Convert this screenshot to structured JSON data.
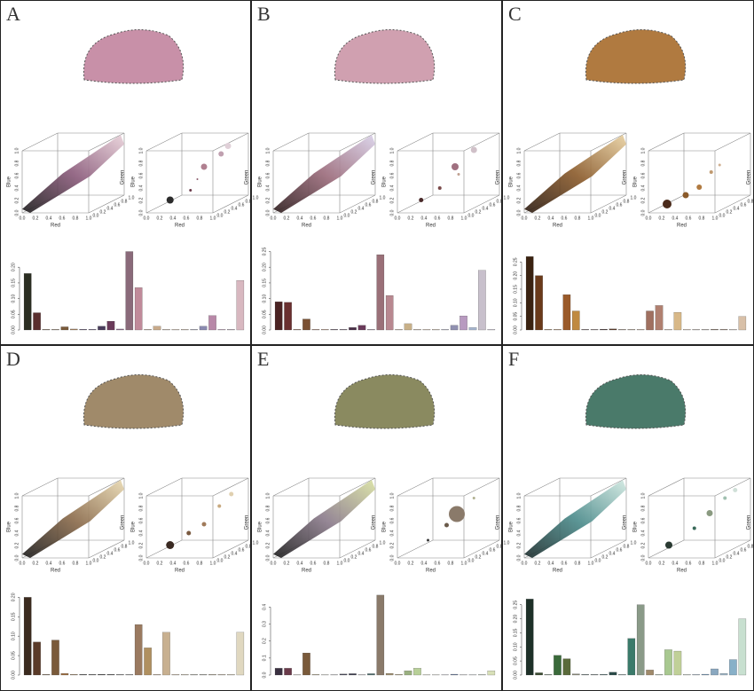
{
  "figure": {
    "scatter_axes": {
      "x_label": "Red",
      "y_label": "Blue",
      "z_label": "Green",
      "ticks": [
        {
          "value": 0,
          "label": "0.0"
        },
        0.2,
        0.4,
        0.6,
        0.8,
        {
          "value": 1,
          "label": "1.0"
        }
      ]
    },
    "panels": [
      {
        "label": "A",
        "type": "bar",
        "cloud_colors": [
          "#1a1a1a",
          "#8a5a7a",
          "#e8d0d8"
        ],
        "bubbles": [
          {
            "red": 0.25,
            "green": 0.2,
            "blue": 0.15,
            "size": 4,
            "color": "#2b2b2b"
          },
          {
            "red": 0.45,
            "green": 0.4,
            "blue": 0.25,
            "size": 1.5,
            "color": "#6a3a4a"
          },
          {
            "red": 0.5,
            "green": 0.5,
            "blue": 0.4,
            "size": 1,
            "color": "#8a5a6a"
          },
          {
            "red": 0.6,
            "green": 0.5,
            "blue": 0.6,
            "size": 3.5,
            "color": "#b08090"
          },
          {
            "red": 0.75,
            "green": 0.7,
            "blue": 0.75,
            "size": 3,
            "color": "#c0a0b0"
          },
          {
            "red": 0.8,
            "green": 0.8,
            "blue": 0.85,
            "size": 3.5,
            "color": "#e0d0d8"
          }
        ],
        "ylim": [
          0,
          0.26
        ],
        "yticks": [
          {
            "value": 0,
            "label": "0.00"
          },
          {
            "value": 0.05,
            "label": "0.05"
          },
          {
            "value": 0.1,
            "label": "0.10"
          },
          {
            "value": 0.15,
            "label": "0.15"
          },
          {
            "value": 0.2,
            "label": "0.20"
          }
        ],
        "values": [
          0.18,
          0.055,
          0.002,
          0.002,
          0.01,
          0.003,
          0.002,
          0.002,
          0.012,
          0.028,
          0.003,
          0.25,
          0.135,
          0.002,
          0.012,
          0.002,
          0.002,
          0.002,
          0.002,
          0.012,
          0.046,
          0.002,
          0.002,
          0.158
        ],
        "colors": [
          "#2b2e22",
          "#5a2e2e",
          "#7a6a5a",
          "#8a7a6a",
          "#7a5a3a",
          "#a08060",
          "#4a3a5a",
          "#5a4a6a",
          "#4a3d5c",
          "#6a3a5a",
          "#8a6a8a",
          "#8a6a7a",
          "#c08a9a",
          "#b0a090",
          "#c8aa8a",
          "#c0b0a0",
          "#d0c0b0",
          "#c0b0a0",
          "#a0a0b0",
          "#8a8ab0",
          "#b888a8",
          "#c0a0b8",
          "#b0a0b0",
          "#d8b8c0"
        ]
      },
      {
        "label": "B",
        "type": "bar",
        "cloud_colors": [
          "#2a1a1a",
          "#9a6a7a",
          "#d8d0e8"
        ],
        "bubbles": [
          {
            "red": 0.25,
            "green": 0.2,
            "blue": 0.15,
            "size": 2.5,
            "color": "#4a2a2a"
          },
          {
            "red": 0.45,
            "green": 0.35,
            "blue": 0.3,
            "size": 2,
            "color": "#7a4a4a"
          },
          {
            "red": 0.6,
            "green": 0.6,
            "blue": 0.45,
            "size": 1.5,
            "color": "#c0a090"
          },
          {
            "red": 0.6,
            "green": 0.5,
            "blue": 0.6,
            "size": 4,
            "color": "#a07080"
          },
          {
            "red": 0.75,
            "green": 0.75,
            "blue": 0.8,
            "size": 3.5,
            "color": "#d0c0c8"
          }
        ],
        "ylim": [
          0,
          0.26
        ],
        "yticks": [
          {
            "value": 0,
            "label": "0.00"
          },
          {
            "value": 0.05,
            "label": "0.05"
          },
          {
            "value": 0.1,
            "label": "0.10"
          },
          {
            "value": 0.15,
            "label": "0.15"
          },
          {
            "value": 0.2,
            "label": "0.20"
          },
          {
            "value": 0.25,
            "label": "0.25"
          }
        ],
        "values": [
          0.09,
          0.088,
          0.002,
          0.035,
          0.002,
          0.002,
          0.002,
          0.002,
          0.008,
          0.015,
          0.002,
          0.24,
          0.11,
          0.002,
          0.02,
          0.002,
          0.002,
          0.002,
          0.002,
          0.015,
          0.045,
          0.008,
          0.19,
          0.002
        ],
        "colors": [
          "#4a2222",
          "#6a3030",
          "#8a6a5a",
          "#7a5032",
          "#a08070",
          "#b09080",
          "#5a4a5a",
          "#6a5a6a",
          "#4a3048",
          "#6a3a5a",
          "#9a8a9a",
          "#9a7078",
          "#b88890",
          "#c0b0a0",
          "#c8b088",
          "#c0b0a0",
          "#d0c0b0",
          "#c8b8a8",
          "#b0b0c0",
          "#9090b0",
          "#b89ac0",
          "#a8b8d0",
          "#c8c0cc",
          "#d0c8d8"
        ]
      },
      {
        "label": "C",
        "type": "bar",
        "cloud_colors": [
          "#2a1a10",
          "#8a5a2a",
          "#e8d0a0"
        ],
        "bubbles": [
          {
            "red": 0.2,
            "green": 0.15,
            "blue": 0.1,
            "size": 5,
            "color": "#4a2a1a"
          },
          {
            "red": 0.4,
            "green": 0.3,
            "blue": 0.2,
            "size": 3.5,
            "color": "#8a5a2a"
          },
          {
            "red": 0.55,
            "green": 0.4,
            "blue": 0.3,
            "size": 3,
            "color": "#b07a40"
          },
          {
            "red": 0.65,
            "green": 0.55,
            "blue": 0.5,
            "size": 2,
            "color": "#c09a70"
          },
          {
            "red": 0.75,
            "green": 0.6,
            "blue": 0.6,
            "size": 1.5,
            "color": "#d0b090"
          }
        ],
        "ylim": [
          0,
          0.3
        ],
        "yticks": [
          {
            "value": 0,
            "label": "0.00"
          },
          {
            "value": 0.05,
            "label": "0.05"
          },
          {
            "value": 0.1,
            "label": "0.10"
          },
          {
            "value": 0.15,
            "label": "0.15"
          },
          {
            "value": 0.2,
            "label": "0.20"
          },
          {
            "value": 0.25,
            "label": "0.25"
          }
        ],
        "values": [
          0.27,
          0.2,
          0.002,
          0.002,
          0.13,
          0.07,
          0.002,
          0.002,
          0.003,
          0.004,
          0.002,
          0.002,
          0.002,
          0.07,
          0.09,
          0.002,
          0.065,
          0.002,
          0.002,
          0.002,
          0.003,
          0.003,
          0.002,
          0.05
        ],
        "colors": [
          "#3a2210",
          "#6a3a1a",
          "#8a6a4a",
          "#9a7a5a",
          "#9a5a2a",
          "#c08a40",
          "#5a4a4a",
          "#6a5a5a",
          "#4a3a3a",
          "#5a3a2a",
          "#8a7a6a",
          "#9a8a7a",
          "#b09a8a",
          "#a07060",
          "#b08070",
          "#c0b0a0",
          "#d8b888",
          "#c8b8a8",
          "#b0a8a0",
          "#a09890",
          "#8a7a70",
          "#9a8a80",
          "#c0b8b0",
          "#d8c0a8"
        ]
      },
      {
        "label": "D",
        "type": "bar",
        "cloud_colors": [
          "#1a1a1a",
          "#8a6a4a",
          "#e8d8b0"
        ],
        "bubbles": [
          {
            "red": 0.25,
            "green": 0.2,
            "blue": 0.15,
            "size": 4.5,
            "color": "#3a2a22"
          },
          {
            "red": 0.45,
            "green": 0.35,
            "blue": 0.3,
            "size": 2.5,
            "color": "#7a5a40"
          },
          {
            "red": 0.6,
            "green": 0.5,
            "blue": 0.4,
            "size": 2.5,
            "color": "#a07a5a"
          },
          {
            "red": 0.75,
            "green": 0.65,
            "blue": 0.65,
            "size": 2,
            "color": "#c8aa80"
          },
          {
            "red": 0.85,
            "green": 0.8,
            "blue": 0.8,
            "size": 2.5,
            "color": "#e0d0b0"
          }
        ],
        "ylim": [
          0,
          0.21
        ],
        "yticks": [
          {
            "value": 0,
            "label": "0.00"
          },
          {
            "value": 0.05,
            "label": "0.05"
          },
          {
            "value": 0.1,
            "label": "0.10"
          },
          {
            "value": 0.15,
            "label": "0.15"
          },
          {
            "value": 0.2,
            "label": "0.20"
          }
        ],
        "values": [
          0.2,
          0.085,
          0.002,
          0.09,
          0.004,
          0.002,
          0.002,
          0.002,
          0.002,
          0.002,
          0.002,
          0.002,
          0.13,
          0.07,
          0.002,
          0.11,
          0.002,
          0.002,
          0.002,
          0.002,
          0.002,
          0.002,
          0.002,
          0.11
        ],
        "colors": [
          "#3a2a1e",
          "#5a3a28",
          "#8a7a6a",
          "#7a5a3a",
          "#9a6a3a",
          "#a08a70",
          "#5a5a5a",
          "#6a6a6a",
          "#4a4a4a",
          "#5a5a5a",
          "#8a8a8a",
          "#9a9a9a",
          "#9a7a60",
          "#b09060",
          "#c0b0a0",
          "#c8b090",
          "#d0c0b0",
          "#c8c0b0",
          "#b0b0a8",
          "#a8a8a0",
          "#b0a898",
          "#c0b8a8",
          "#d0c8b8",
          "#e0d8c0"
        ]
      },
      {
        "label": "E",
        "type": "bar",
        "cloud_colors": [
          "#1a1a1a",
          "#8a7a8a",
          "#d8e0a0"
        ],
        "bubbles": [
          {
            "red": 0.3,
            "green": 0.3,
            "blue": 0.2,
            "size": 1.5,
            "color": "#3a3a3a"
          },
          {
            "red": 0.5,
            "green": 0.45,
            "blue": 0.4,
            "size": 2.5,
            "color": "#6a5a4a"
          },
          {
            "red": 0.6,
            "green": 0.55,
            "blue": 0.55,
            "size": 9,
            "color": "#8a7a6a"
          },
          {
            "red": 0.75,
            "green": 0.75,
            "blue": 0.75,
            "size": 1.5,
            "color": "#b0b090"
          }
        ],
        "ylim": [
          0,
          0.48
        ],
        "yticks": [
          {
            "value": 0,
            "label": "0.0"
          },
          0.1,
          0.2,
          0.3,
          0.4
        ],
        "values": [
          0.04,
          0.04,
          0.002,
          0.13,
          0.003,
          0.002,
          0.002,
          0.006,
          0.008,
          0.002,
          0.008,
          0.47,
          0.01,
          0.004,
          0.025,
          0.04,
          0.002,
          0.002,
          0.002,
          0.005,
          0.002,
          0.002,
          0.003,
          0.025
        ],
        "colors": [
          "#3a3040",
          "#6a3a4a",
          "#8a7a6a",
          "#7a5a3a",
          "#9a8a6a",
          "#a09a80",
          "#5a5a6a",
          "#4a4a5a",
          "#3a3a4a",
          "#5a4a5a",
          "#4a6a6a",
          "#8a7a6a",
          "#a09070",
          "#b0a080",
          "#9ab080",
          "#b8d098",
          "#c0c0a0",
          "#c8c8b0",
          "#a0a0b0",
          "#7080a0",
          "#9090a0",
          "#a0a8b0",
          "#b0c0b0",
          "#d8e0b8"
        ]
      },
      {
        "label": "F",
        "type": "bar",
        "cloud_colors": [
          "#1a2a2a",
          "#4a8a8a",
          "#d0e8e0"
        ],
        "bubbles": [
          {
            "red": 0.2,
            "green": 0.2,
            "blue": 0.15,
            "size": 4,
            "color": "#2a3a32"
          },
          {
            "red": 0.45,
            "green": 0.45,
            "blue": 0.35,
            "size": 2,
            "color": "#3a6a5a"
          },
          {
            "red": 0.6,
            "green": 0.6,
            "blue": 0.55,
            "size": 3.5,
            "color": "#8a9a80"
          },
          {
            "red": 0.75,
            "green": 0.75,
            "blue": 0.75,
            "size": 2,
            "color": "#a0c0b0"
          },
          {
            "red": 0.85,
            "green": 0.85,
            "blue": 0.85,
            "size": 2.5,
            "color": "#d0e0d8"
          }
        ],
        "ylim": [
          0,
          0.29
        ],
        "yticks": [
          {
            "value": 0,
            "label": "0.00"
          },
          {
            "value": 0.05,
            "label": "0.05"
          },
          {
            "value": 0.1,
            "label": "0.10"
          },
          {
            "value": 0.15,
            "label": "0.15"
          },
          {
            "value": 0.2,
            "label": "0.20"
          },
          {
            "value": 0.25,
            "label": "0.25"
          }
        ],
        "values": [
          0.27,
          0.008,
          0.002,
          0.07,
          0.058,
          0.004,
          0.002,
          0.002,
          0.002,
          0.01,
          0.002,
          0.13,
          0.25,
          0.018,
          0.002,
          0.09,
          0.085,
          0.002,
          0.002,
          0.003,
          0.022,
          0.006,
          0.055,
          0.2
        ],
        "colors": [
          "#1e3028",
          "#3a4a30",
          "#6a7a6a",
          "#3a6a3a",
          "#5a6a3a",
          "#8a8a7a",
          "#4a5a5a",
          "#5a6a6a",
          "#2a4a4a",
          "#2a4a48",
          "#7a8a8a",
          "#3a7a6a",
          "#8a9a88",
          "#a08a6a",
          "#a0b0a0",
          "#a8c890",
          "#c0d098",
          "#c0c8c0",
          "#a0b0c0",
          "#7a9ab8",
          "#8aa8c0",
          "#a0b8c8",
          "#88b0c8",
          "#c8e0d0"
        ]
      }
    ]
  }
}
